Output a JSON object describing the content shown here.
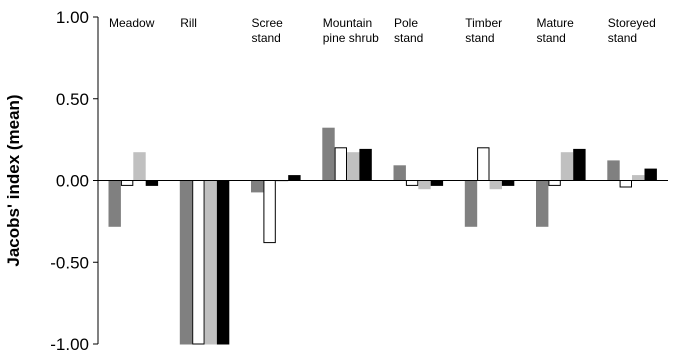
{
  "chart_data": {
    "type": "bar",
    "ylabel": "Jacobs' index (mean)",
    "ylim": [
      -1.0,
      1.0
    ],
    "yticks": [
      "1.00",
      "0.50",
      "0.00",
      "-0.50",
      "-1.00"
    ],
    "ytick_values": [
      1.0,
      0.5,
      0.0,
      -0.5,
      -1.0
    ],
    "categories": [
      [
        "Meadow"
      ],
      [
        "Rill"
      ],
      [
        "Scree",
        "stand"
      ],
      [
        "Mountain",
        "pine shrub"
      ],
      [
        "Pole",
        "stand"
      ],
      [
        "Timber",
        "stand"
      ],
      [
        "Mature",
        "stand"
      ],
      [
        "Storeyed",
        "stand"
      ]
    ],
    "series": [
      {
        "color": "#808080",
        "stroke": "#808080",
        "values": [
          -0.28,
          -1.0,
          -0.07,
          0.32,
          0.09,
          -0.28,
          -0.28,
          0.12
        ]
      },
      {
        "color": "#ffffff",
        "stroke": "#000000",
        "values": [
          -0.03,
          -1.0,
          -0.38,
          0.2,
          -0.03,
          0.2,
          -0.03,
          -0.04
        ]
      },
      {
        "color": "#c0c0c0",
        "stroke": "#c0c0c0",
        "values": [
          0.17,
          -1.0,
          0.0,
          0.17,
          -0.05,
          -0.05,
          0.17,
          0.03
        ]
      },
      {
        "color": "#000000",
        "stroke": "#000000",
        "values": [
          -0.03,
          -1.0,
          0.03,
          0.19,
          -0.03,
          -0.03,
          0.19,
          0.07
        ]
      }
    ],
    "grid": false,
    "legend": "none"
  }
}
